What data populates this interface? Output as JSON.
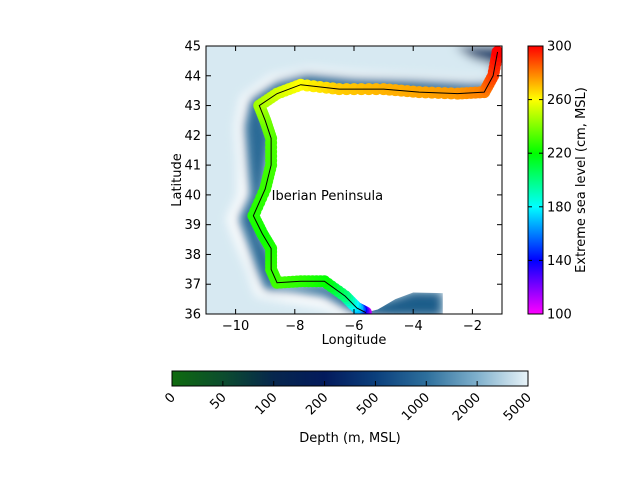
{
  "chart_data": {
    "type": "map",
    "xlabel": "Longitude",
    "ylabel": "Latitude",
    "xlim": [
      -11,
      -1
    ],
    "ylim": [
      36,
      45
    ],
    "xticks": [
      -10,
      -8,
      -6,
      -4,
      -2
    ],
    "xtick_labels": [
      "−10",
      "−8",
      "−6",
      "−4",
      "−2"
    ],
    "yticks": [
      36,
      37,
      38,
      39,
      40,
      41,
      42,
      43,
      44,
      45
    ],
    "ytick_labels": [
      "36",
      "37",
      "38",
      "39",
      "40",
      "41",
      "42",
      "43",
      "44",
      "45"
    ],
    "annotation": {
      "text": "Iberian Peninsula",
      "lon": -6.9,
      "lat": 40.0
    },
    "coastline": {
      "series_label": "Extreme sea level (cm, MSL)",
      "points": [
        {
          "lon": -5.6,
          "lat": 36.05,
          "value": 110
        },
        {
          "lon": -5.9,
          "lat": 36.2,
          "value": 170
        },
        {
          "lon": -6.3,
          "lat": 36.6,
          "value": 200
        },
        {
          "lon": -7.0,
          "lat": 37.1,
          "value": 220
        },
        {
          "lon": -7.8,
          "lat": 37.1,
          "value": 226
        },
        {
          "lon": -8.6,
          "lat": 37.05,
          "value": 230
        },
        {
          "lon": -8.8,
          "lat": 37.5,
          "value": 228
        },
        {
          "lon": -8.8,
          "lat": 38.2,
          "value": 225
        },
        {
          "lon": -9.1,
          "lat": 38.7,
          "value": 222
        },
        {
          "lon": -9.4,
          "lat": 39.3,
          "value": 225
        },
        {
          "lon": -9.0,
          "lat": 40.2,
          "value": 228
        },
        {
          "lon": -8.8,
          "lat": 41.0,
          "value": 230
        },
        {
          "lon": -8.8,
          "lat": 41.9,
          "value": 232
        },
        {
          "lon": -9.0,
          "lat": 42.5,
          "value": 238
        },
        {
          "lon": -9.2,
          "lat": 43.0,
          "value": 245
        },
        {
          "lon": -8.6,
          "lat": 43.4,
          "value": 252
        },
        {
          "lon": -7.8,
          "lat": 43.7,
          "value": 260
        },
        {
          "lon": -6.5,
          "lat": 43.55,
          "value": 268
        },
        {
          "lon": -5.0,
          "lat": 43.55,
          "value": 272
        },
        {
          "lon": -3.8,
          "lat": 43.45,
          "value": 274
        },
        {
          "lon": -2.5,
          "lat": 43.4,
          "value": 276
        },
        {
          "lon": -1.6,
          "lat": 43.45,
          "value": 280
        },
        {
          "lon": -1.3,
          "lat": 44.0,
          "value": 290
        },
        {
          "lon": -1.15,
          "lat": 44.8,
          "value": 300
        }
      ]
    },
    "sea_level_colorbar": {
      "label": "Extreme sea level (cm, MSL)",
      "orientation": "vertical",
      "range": [
        100,
        300
      ],
      "ticks": [
        100,
        140,
        180,
        220,
        260,
        300
      ],
      "colormap": [
        "#ff00ff",
        "#0000ff",
        "#00ffff",
        "#00ff00",
        "#ffff00",
        "#ff0000"
      ]
    },
    "depth_colorbar": {
      "label": "Depth (m, MSL)",
      "orientation": "horizontal",
      "ticks": [
        0,
        50,
        100,
        200,
        500,
        1000,
        2000,
        5000
      ],
      "colors": [
        "#0f6b0f",
        "#0c4d2e",
        "#06264d",
        "#031a5c",
        "#0b3f7c",
        "#2d6f9c",
        "#7fb0cc",
        "#e8f3f8"
      ]
    }
  }
}
